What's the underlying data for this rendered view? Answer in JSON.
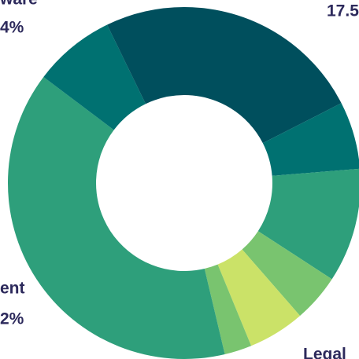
{
  "chart_data": {
    "type": "donut",
    "categories": [
      null,
      null,
      null,
      null,
      "Legal",
      null,
      null,
      null,
      null
    ],
    "values": [
      17.5,
      6.2,
      10.5,
      4.4,
      5.2,
      2.5,
      39.0,
      7.5,
      7.2
    ],
    "colors": [
      "#004f5d",
      "#007171",
      "#2e9f7b",
      "#79c46f",
      "#cbe268",
      "#79c46f",
      "#2e9f7b",
      "#007171",
      "#004f5d"
    ],
    "annotations": [
      "ware",
      "4%",
      "17.5",
      "ent",
      "2%"
    ]
  }
}
